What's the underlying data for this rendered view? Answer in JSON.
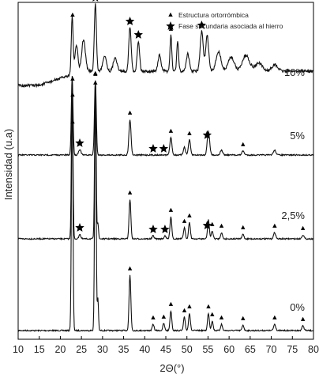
{
  "chart_data": {
    "type": "line",
    "xlabel": "2Θ(°)",
    "ylabel": "Intensidad (u.a)",
    "xlim": [
      10,
      80
    ],
    "x_ticks": [
      10,
      15,
      20,
      25,
      30,
      35,
      40,
      45,
      50,
      55,
      60,
      65,
      70,
      75,
      80
    ],
    "x_tick_labels": [
      "10",
      "15",
      "20",
      "25",
      "30",
      "35",
      "40",
      "45",
      "50",
      "55",
      "60",
      "65",
      "70",
      "75",
      "80"
    ],
    "grid": false,
    "legend": {
      "position": "top-right",
      "entries": [
        {
          "marker": "triangle",
          "label": "Estructura ortorrómbica"
        },
        {
          "marker": "star",
          "label": "Fase secundaria asociada al hierro"
        }
      ]
    },
    "peaks_orthorhombic": [
      22.9,
      28.3,
      32.0,
      36.5,
      42.0,
      44.5,
      46.2,
      49.4,
      50.6,
      55.1,
      56.0,
      58.2,
      63.3,
      70.8,
      77.5
    ],
    "series": [
      {
        "name": "0%",
        "baseline": 0.0,
        "orthorhombic_markers": [
          22.9,
          28.3,
          36.5,
          42.0,
          44.5,
          46.2,
          49.4,
          50.6,
          55.1,
          56.0,
          58.2,
          63.3,
          70.8,
          77.5
        ],
        "secondary_markers": []
      },
      {
        "name": "2,5%",
        "baseline": 0.0,
        "orthorhombic_markers": [
          22.9,
          28.3,
          36.5,
          46.2,
          49.4,
          50.6,
          56.0,
          58.2,
          63.3,
          70.8,
          77.5
        ],
        "secondary_markers": [
          24.6,
          42.0,
          44.8,
          54.8
        ]
      },
      {
        "name": "5%",
        "baseline": 0.0,
        "orthorhombic_markers": [
          22.9,
          28.3,
          36.5,
          46.2,
          50.6,
          63.3
        ],
        "secondary_markers": [
          24.6,
          42.0,
          44.5,
          54.8
        ]
      },
      {
        "name": "10%",
        "baseline": 0.0,
        "orthorhombic_markers": [
          22.9,
          46.2
        ],
        "secondary_markers": [
          28.3,
          36.5,
          38.5,
          53.5
        ]
      }
    ]
  },
  "markers": {
    "triangle_color": "#000000",
    "star_color": "#000000",
    "line_color": "#111111"
  }
}
